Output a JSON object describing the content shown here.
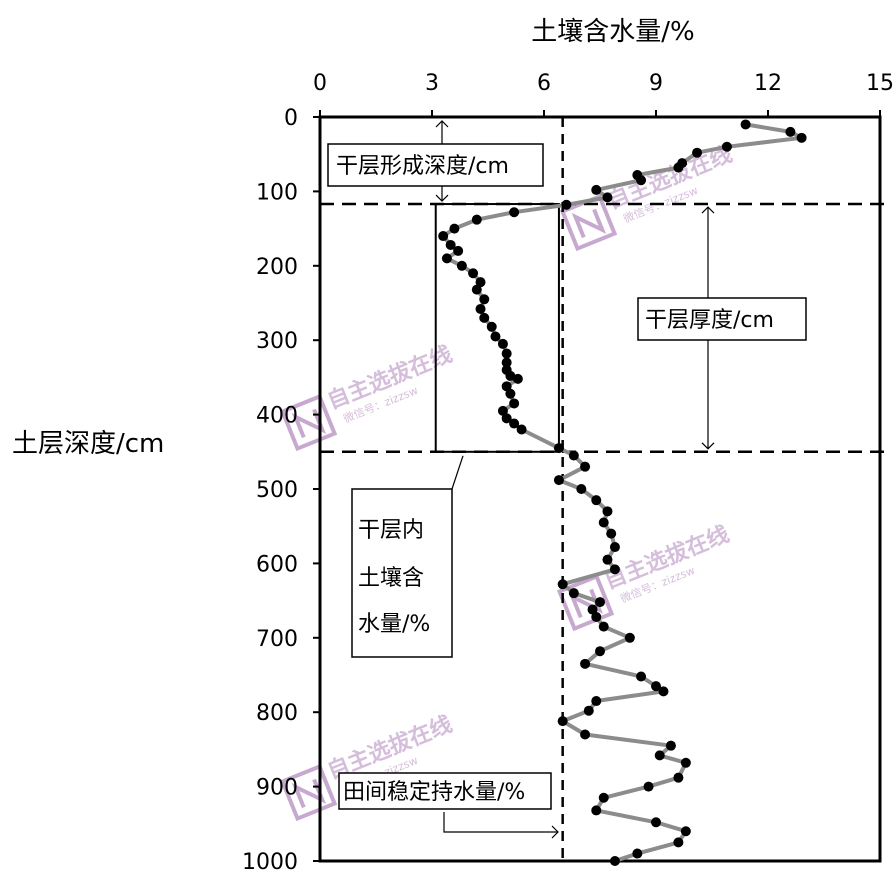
{
  "chart_data": {
    "type": "scatter",
    "title": "",
    "xlabel": "土壤含水量/%",
    "ylabel": "土层深度/cm",
    "xlim": [
      0,
      15
    ],
    "ylim": [
      0,
      1000
    ],
    "x_axis_position": "top",
    "y_axis_inverted": true,
    "x_ticks": [
      "0",
      "3",
      "6",
      "9",
      "12",
      "15"
    ],
    "y_ticks": [
      "0",
      "100",
      "200",
      "300",
      "400",
      "500",
      "600",
      "700",
      "800",
      "900",
      "1000"
    ],
    "grid": false,
    "series": [
      {
        "points": [
          {
            "x": 11.4,
            "y": 10
          },
          {
            "x": 12.6,
            "y": 20
          },
          {
            "x": 12.9,
            "y": 28
          },
          {
            "x": 10.9,
            "y": 40
          },
          {
            "x": 10.1,
            "y": 48
          },
          {
            "x": 9.7,
            "y": 62
          },
          {
            "x": 9.6,
            "y": 68
          },
          {
            "x": 8.5,
            "y": 78
          },
          {
            "x": 8.6,
            "y": 85
          },
          {
            "x": 7.4,
            "y": 98
          },
          {
            "x": 7.7,
            "y": 108
          },
          {
            "x": 6.6,
            "y": 118
          },
          {
            "x": 5.2,
            "y": 128
          },
          {
            "x": 4.2,
            "y": 138
          },
          {
            "x": 3.6,
            "y": 150
          },
          {
            "x": 3.3,
            "y": 160
          },
          {
            "x": 3.5,
            "y": 172
          },
          {
            "x": 3.7,
            "y": 180
          },
          {
            "x": 3.4,
            "y": 190
          },
          {
            "x": 3.8,
            "y": 200
          },
          {
            "x": 4.1,
            "y": 210
          },
          {
            "x": 4.3,
            "y": 222
          },
          {
            "x": 4.2,
            "y": 232
          },
          {
            "x": 4.4,
            "y": 245
          },
          {
            "x": 4.3,
            "y": 258
          },
          {
            "x": 4.4,
            "y": 270
          },
          {
            "x": 4.6,
            "y": 282
          },
          {
            "x": 4.7,
            "y": 295
          },
          {
            "x": 4.9,
            "y": 305
          },
          {
            "x": 5.0,
            "y": 318
          },
          {
            "x": 5.0,
            "y": 330
          },
          {
            "x": 5.0,
            "y": 340
          },
          {
            "x": 5.1,
            "y": 348
          },
          {
            "x": 5.3,
            "y": 352
          },
          {
            "x": 5.0,
            "y": 362
          },
          {
            "x": 5.1,
            "y": 372
          },
          {
            "x": 5.2,
            "y": 385
          },
          {
            "x": 4.9,
            "y": 395
          },
          {
            "x": 5.0,
            "y": 405
          },
          {
            "x": 5.2,
            "y": 412
          },
          {
            "x": 5.4,
            "y": 420
          },
          {
            "x": 6.4,
            "y": 445
          },
          {
            "x": 6.8,
            "y": 455
          },
          {
            "x": 7.1,
            "y": 470
          },
          {
            "x": 6.4,
            "y": 488
          },
          {
            "x": 7.0,
            "y": 500
          },
          {
            "x": 7.4,
            "y": 515
          },
          {
            "x": 7.7,
            "y": 530
          },
          {
            "x": 7.6,
            "y": 545
          },
          {
            "x": 7.8,
            "y": 560
          },
          {
            "x": 7.9,
            "y": 578
          },
          {
            "x": 7.7,
            "y": 595
          },
          {
            "x": 7.9,
            "y": 608
          },
          {
            "x": 6.5,
            "y": 628
          },
          {
            "x": 6.8,
            "y": 640
          },
          {
            "x": 7.5,
            "y": 652
          },
          {
            "x": 7.3,
            "y": 662
          },
          {
            "x": 7.4,
            "y": 672
          },
          {
            "x": 7.6,
            "y": 685
          },
          {
            "x": 8.3,
            "y": 700
          },
          {
            "x": 7.5,
            "y": 718
          },
          {
            "x": 7.1,
            "y": 735
          },
          {
            "x": 8.6,
            "y": 752
          },
          {
            "x": 9.0,
            "y": 765
          },
          {
            "x": 9.2,
            "y": 772
          },
          {
            "x": 7.4,
            "y": 785
          },
          {
            "x": 7.2,
            "y": 798
          },
          {
            "x": 6.5,
            "y": 812
          },
          {
            "x": 7.1,
            "y": 830
          },
          {
            "x": 9.4,
            "y": 845
          },
          {
            "x": 9.1,
            "y": 858
          },
          {
            "x": 9.8,
            "y": 868
          },
          {
            "x": 9.6,
            "y": 888
          },
          {
            "x": 8.8,
            "y": 900
          },
          {
            "x": 7.6,
            "y": 915
          },
          {
            "x": 7.4,
            "y": 932
          },
          {
            "x": 9.0,
            "y": 948
          },
          {
            "x": 9.8,
            "y": 960
          },
          {
            "x": 9.6,
            "y": 975
          },
          {
            "x": 8.5,
            "y": 990
          },
          {
            "x": 7.9,
            "y": 1000
          }
        ]
      }
    ],
    "field_capacity_x": 6.5,
    "dry_layer_top_depth": 117,
    "dry_layer_bottom_depth": 450,
    "dry_layer_box_x_range": [
      3.1,
      6.4
    ],
    "annotations": [
      {
        "text": "干层形成深度/cm"
      },
      {
        "text": "干层厚度/cm"
      },
      {
        "lines": [
          "干层内",
          "土壤含",
          "水量/%"
        ]
      },
      {
        "text": "田间稳定持水量/%"
      }
    ],
    "watermark": {
      "lines": [
        "自主选拔在线",
        "微信号：zizzsw"
      ],
      "icon": "zizzsw-logo-icon"
    }
  }
}
